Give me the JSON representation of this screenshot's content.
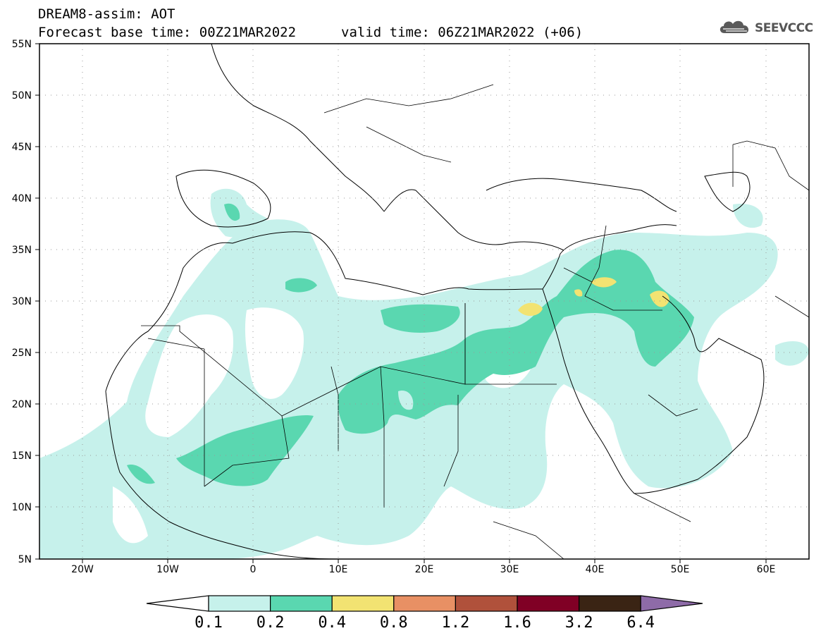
{
  "header": {
    "title": "DREAM8-assim: AOT",
    "base_time": "Forecast base time: 00Z21MAR2022",
    "valid_time": "valid time: 06Z21MAR2022 (+06)"
  },
  "logo": {
    "text": "SEEVCCC",
    "icon": "cloud-icon"
  },
  "map": {
    "variable": "Aerosol optical thickness",
    "lon_range": [
      -25,
      65
    ],
    "lat_range": [
      5,
      55
    ],
    "grid": "dotted",
    "lat_ticks": [
      "55N",
      "50N",
      "45N",
      "40N",
      "35N",
      "30N",
      "25N",
      "20N",
      "15N",
      "10N",
      "5N"
    ],
    "lon_ticks": [
      "20W",
      "10W",
      "0",
      "10E",
      "20E",
      "30E",
      "40E",
      "50E",
      "60E"
    ]
  },
  "colorbar": {
    "labels": [
      "0.1",
      "0.2",
      "0.4",
      "0.8",
      "1.2",
      "1.6",
      "3.2",
      "6.4"
    ],
    "colors": [
      "#c6f1eb",
      "#5ad7b0",
      "#f2e372",
      "#e89064",
      "#b0513b",
      "#800025",
      "#3a2414",
      "#8e6ba8"
    ],
    "under_color": "#ffffff"
  }
}
